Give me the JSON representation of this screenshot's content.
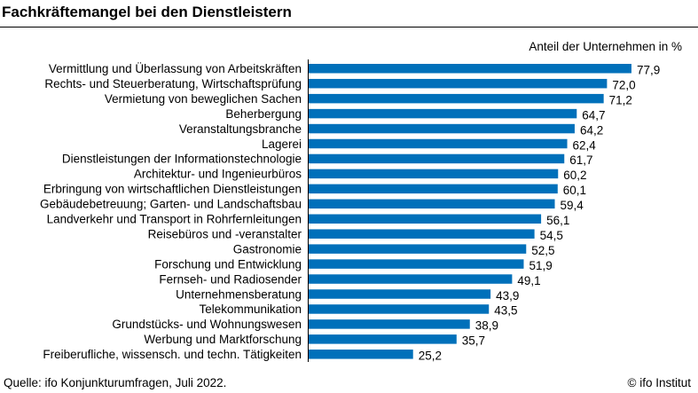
{
  "chart_data": {
    "type": "bar",
    "orientation": "horizontal",
    "title": "Fachkräftemangel bei den Dienstleistern",
    "unit_label": "Anteil der Unternehmen in %",
    "categories": [
      "Vermittlung und Überlassung von Arbeitskräften",
      "Rechts- und Steuerberatung, Wirtschaftsprüfung",
      "Vermietung von beweglichen Sachen",
      "Beherbergung",
      "Veranstaltungsbranche",
      "Lagerei",
      "Dienstleistungen der Informationstechnologie",
      "Architektur- und Ingenieurbüros",
      "Erbringung von wirtschaftlichen Dienstleistungen",
      "Gebäudebetreuung; Garten- und Landschaftsbau",
      "Landverkehr und Transport in Rohrfernleitungen",
      "Reisebüros und -veranstalter",
      "Gastronomie",
      "Forschung und Entwicklung",
      "Fernseh- und Radiosender",
      "Unternehmensberatung",
      "Telekommunikation",
      "Grundstücks- und Wohnungswesen",
      "Werbung und Marktforschung",
      "Freiberufliche, wissensch. und techn. Tätigkeiten"
    ],
    "values": [
      77.9,
      72.0,
      71.2,
      64.7,
      64.2,
      62.4,
      61.7,
      60.2,
      60.1,
      59.4,
      56.1,
      54.5,
      52.5,
      51.9,
      49.1,
      43.9,
      43.5,
      38.9,
      35.7,
      25.2
    ],
    "value_labels": [
      "77,9",
      "72,0",
      "71,2",
      "64,7",
      "64,2",
      "62,4",
      "61,7",
      "60,2",
      "60,1",
      "59,4",
      "56,1",
      "54,5",
      "52,5",
      "51,9",
      "49,1",
      "43,9",
      "43,5",
      "38,9",
      "35,7",
      "25,2"
    ],
    "bar_color": "#0070BA",
    "xlim": [
      0,
      80
    ],
    "grid": false,
    "legend": "none"
  },
  "footer": {
    "source": "Quelle: ifo Konjunkturumfragen, Juli 2022.",
    "copyright": "© ifo Institut"
  }
}
